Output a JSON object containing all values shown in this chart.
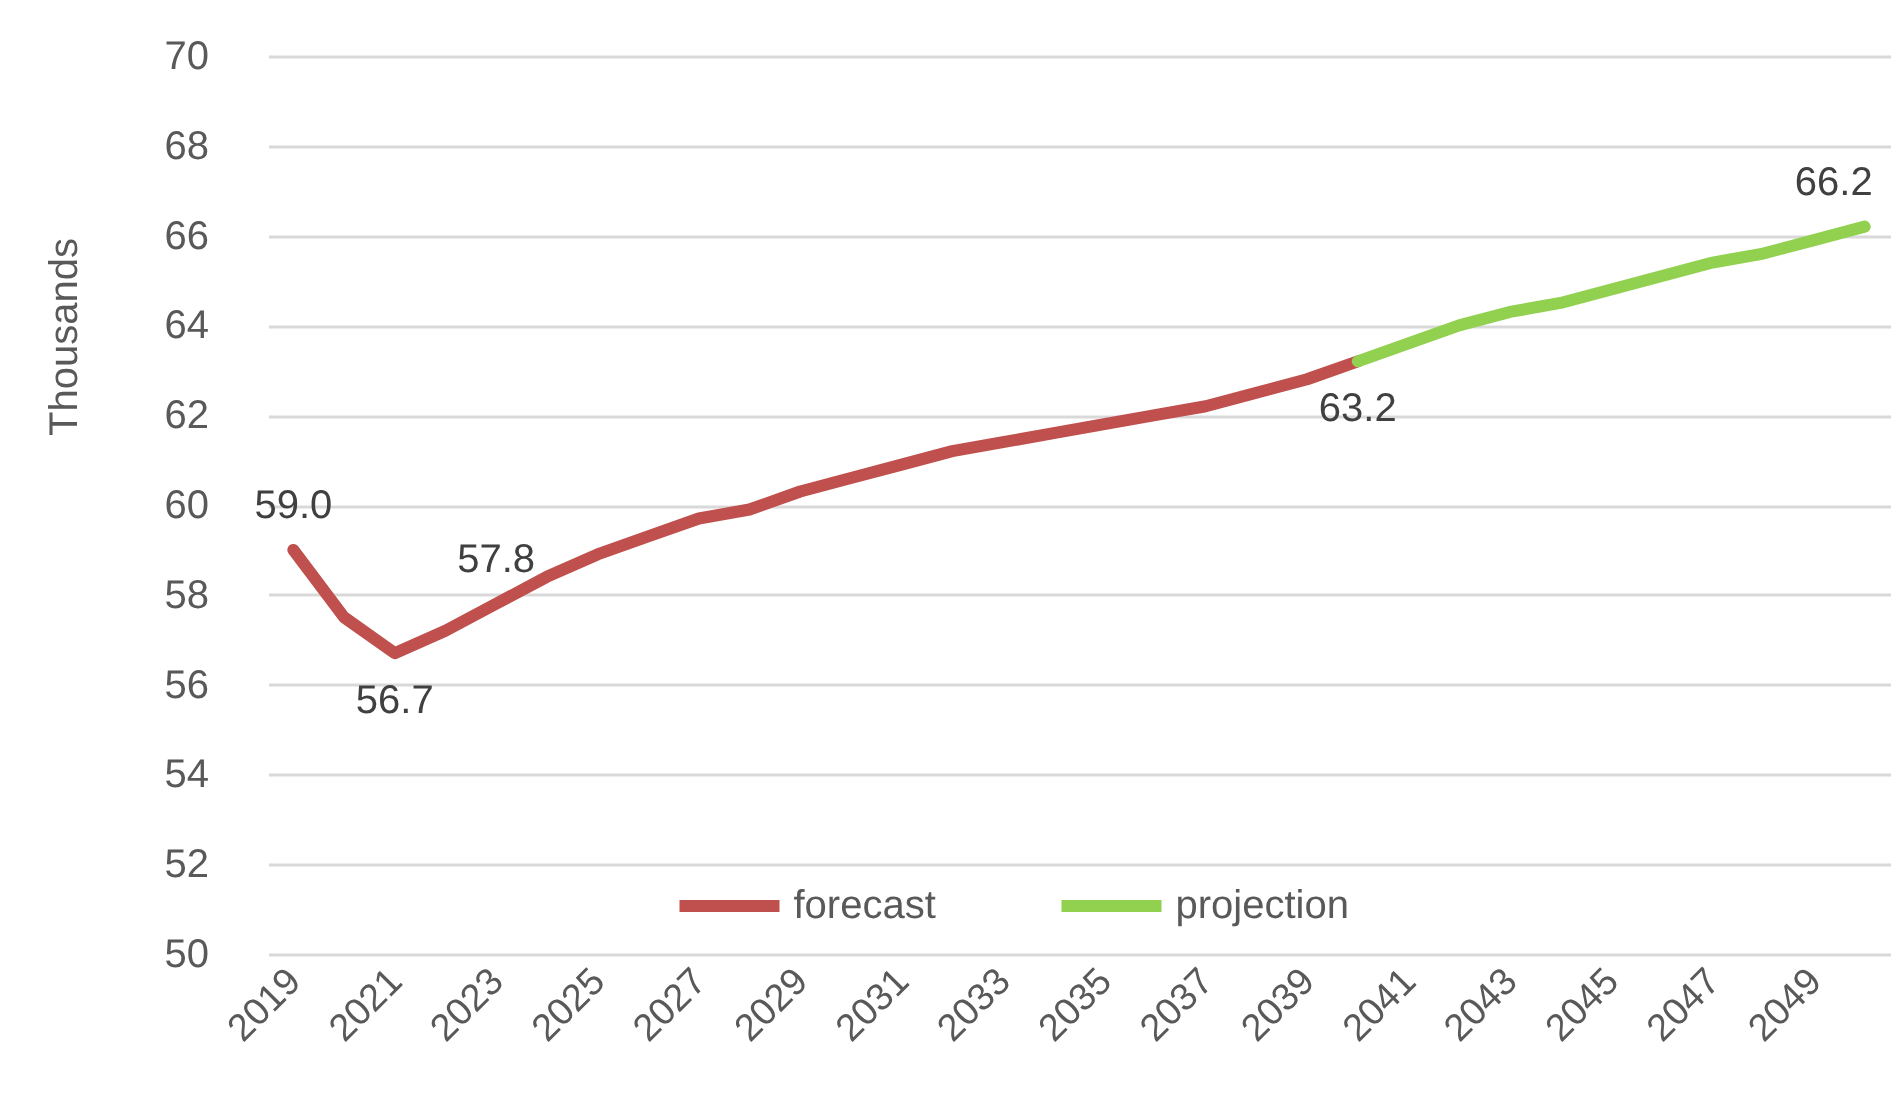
{
  "chart_data": {
    "type": "line",
    "ylabel": "Thousands",
    "categories": [
      "2019",
      null,
      "2021",
      null,
      "2023",
      null,
      "2025",
      null,
      "2027",
      null,
      "2029",
      null,
      "2031",
      null,
      "2033",
      null,
      "2035",
      null,
      "2037",
      null,
      "2039",
      null,
      "2041",
      null,
      "2043",
      null,
      "2045",
      null,
      "2047",
      null,
      "2049",
      null
    ],
    "ylim": [
      50,
      70
    ],
    "yticks": [
      50,
      52,
      54,
      56,
      58,
      60,
      62,
      64,
      66,
      68,
      70
    ],
    "grid": "y",
    "legend": "bottom",
    "marker": "none",
    "line_style": "solid",
    "series": [
      {
        "name": "forecast",
        "color": "#c0504d",
        "values": [
          59.0,
          57.5,
          56.7,
          57.2,
          57.8,
          58.4,
          58.9,
          59.3,
          59.7,
          59.9,
          60.3,
          60.6,
          60.9,
          61.2,
          61.4,
          61.6,
          61.8,
          62.0,
          62.2,
          62.5,
          62.8,
          63.2,
          null,
          null,
          null,
          null,
          null,
          null,
          null,
          null,
          null,
          null
        ],
        "value_labels": [
          "59.0",
          null,
          "56.7",
          null,
          "57.8",
          null,
          null,
          null,
          null,
          null,
          null,
          null,
          null,
          null,
          null,
          null,
          null,
          null,
          null,
          null,
          null,
          "63.2",
          null,
          null,
          null,
          null,
          null,
          null,
          null,
          null,
          null,
          null
        ]
      },
      {
        "name": "projection",
        "color": "#92d050",
        "values": [
          null,
          null,
          null,
          null,
          null,
          null,
          null,
          null,
          null,
          null,
          null,
          null,
          null,
          null,
          null,
          null,
          null,
          null,
          null,
          null,
          null,
          63.2,
          63.6,
          64.0,
          64.3,
          64.5,
          64.8,
          65.1,
          65.4,
          65.6,
          65.9,
          66.2
        ],
        "value_labels": [
          null,
          null,
          null,
          null,
          null,
          null,
          null,
          null,
          null,
          null,
          null,
          null,
          null,
          null,
          null,
          null,
          null,
          null,
          null,
          null,
          null,
          null,
          null,
          null,
          null,
          null,
          null,
          null,
          null,
          null,
          null,
          "66.2"
        ]
      }
    ]
  }
}
